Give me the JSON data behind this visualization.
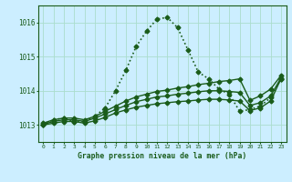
{
  "title": "Graphe pression niveau de la mer (hPa)",
  "background_color": "#cceeff",
  "grid_color": "#aaddcc",
  "line_color": "#1a5c1a",
  "xlim": [
    -0.5,
    23.5
  ],
  "ylim": [
    1012.5,
    1016.5
  ],
  "yticks": [
    1013,
    1014,
    1015,
    1016
  ],
  "yticklabels": [
    "1013",
    "1014",
    "1015",
    "1016"
  ],
  "xticks": [
    0,
    1,
    2,
    3,
    4,
    5,
    6,
    7,
    8,
    9,
    10,
    11,
    12,
    13,
    14,
    15,
    16,
    17,
    18,
    19,
    20,
    21,
    22,
    23
  ],
  "series": [
    {
      "x": [
        0,
        1,
        2,
        3,
        4,
        5,
        6,
        7,
        8,
        9,
        10,
        11,
        12,
        13,
        14,
        15,
        16,
        17,
        18,
        19,
        20,
        21,
        22,
        23
      ],
      "y": [
        1013.0,
        1013.15,
        1013.2,
        1013.1,
        1013.1,
        1013.25,
        1013.5,
        1014.0,
        1014.6,
        1015.3,
        1015.75,
        1016.1,
        1016.15,
        1015.85,
        1015.2,
        1014.55,
        1014.35,
        1014.05,
        1013.9,
        1013.4,
        1013.45,
        1013.55,
        1013.8,
        1014.35
      ],
      "style": "dotted",
      "linewidth": 1.2,
      "marker": "D",
      "markersize": 2.5
    },
    {
      "x": [
        0,
        1,
        2,
        3,
        4,
        5,
        6,
        7,
        8,
        9,
        10,
        11,
        12,
        13,
        14,
        15,
        16,
        17,
        18,
        19,
        20,
        21,
        22,
        23
      ],
      "y": [
        1013.05,
        1013.15,
        1013.2,
        1013.2,
        1013.15,
        1013.25,
        1013.4,
        1013.55,
        1013.7,
        1013.82,
        1013.9,
        1013.98,
        1014.02,
        1014.08,
        1014.12,
        1014.18,
        1014.22,
        1014.27,
        1014.3,
        1014.35,
        1013.72,
        1013.85,
        1014.05,
        1014.45
      ],
      "style": "solid",
      "linewidth": 1.0,
      "marker": "D",
      "markersize": 2.5
    },
    {
      "x": [
        0,
        1,
        2,
        3,
        4,
        5,
        6,
        7,
        8,
        9,
        10,
        11,
        12,
        13,
        14,
        15,
        16,
        17,
        18,
        19,
        20,
        21,
        22,
        23
      ],
      "y": [
        1013.02,
        1013.1,
        1013.15,
        1013.15,
        1013.1,
        1013.2,
        1013.32,
        1013.45,
        1013.57,
        1013.68,
        1013.75,
        1013.82,
        1013.85,
        1013.9,
        1013.93,
        1013.97,
        1014.0,
        1014.0,
        1013.98,
        1013.95,
        1013.57,
        1013.65,
        1013.85,
        1014.38
      ],
      "style": "solid",
      "linewidth": 1.0,
      "marker": "D",
      "markersize": 2.5
    },
    {
      "x": [
        0,
        1,
        2,
        3,
        4,
        5,
        6,
        7,
        8,
        9,
        10,
        11,
        12,
        13,
        14,
        15,
        16,
        17,
        18,
        19,
        20,
        21,
        22,
        23
      ],
      "y": [
        1013.0,
        1013.05,
        1013.1,
        1013.1,
        1013.05,
        1013.12,
        1013.22,
        1013.35,
        1013.44,
        1013.52,
        1013.57,
        1013.62,
        1013.65,
        1013.68,
        1013.7,
        1013.73,
        1013.75,
        1013.75,
        1013.73,
        1013.7,
        1013.42,
        1013.5,
        1013.7,
        1014.35
      ],
      "style": "solid",
      "linewidth": 1.0,
      "marker": "D",
      "markersize": 2.5
    }
  ]
}
